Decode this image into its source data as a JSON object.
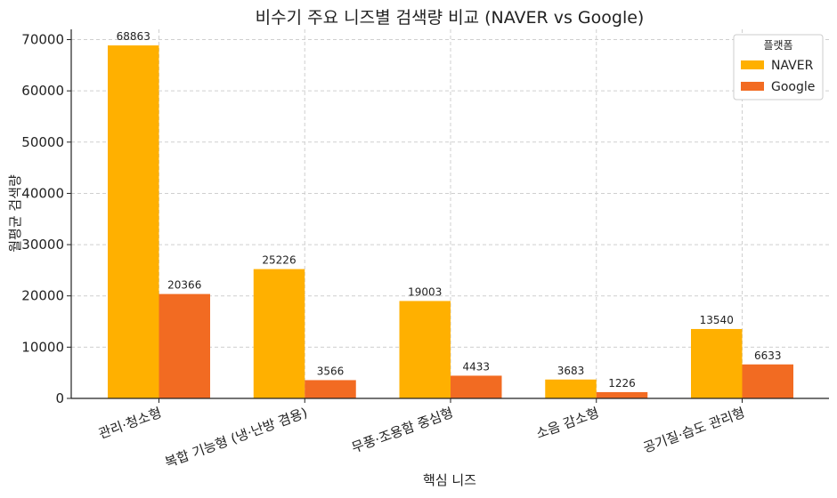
{
  "chart_data": {
    "type": "bar",
    "title": "비수기 주요 니즈별 검색량 비교 (NAVER vs Google)",
    "xlabel": "핵심 니즈",
    "ylabel": "월평균 검색량",
    "categories": [
      "관리·청소형",
      "복합 기능형 (냉·난방 겸용)",
      "무풍·조용함 중심형",
      "소음 감소형",
      "공기질·습도 관리형"
    ],
    "series": [
      {
        "name": "NAVER",
        "color": "#FFB000",
        "values": [
          68863,
          25226,
          19003,
          3683,
          13540
        ]
      },
      {
        "name": "Google",
        "color": "#F26B22",
        "values": [
          20366,
          3566,
          4433,
          1226,
          6633
        ]
      }
    ],
    "ylim": [
      0,
      72000
    ],
    "yticks": [
      0,
      10000,
      20000,
      30000,
      40000,
      50000,
      60000,
      70000
    ],
    "grid": true,
    "legend": {
      "title": "플랫폼",
      "placement": "top-right"
    }
  }
}
